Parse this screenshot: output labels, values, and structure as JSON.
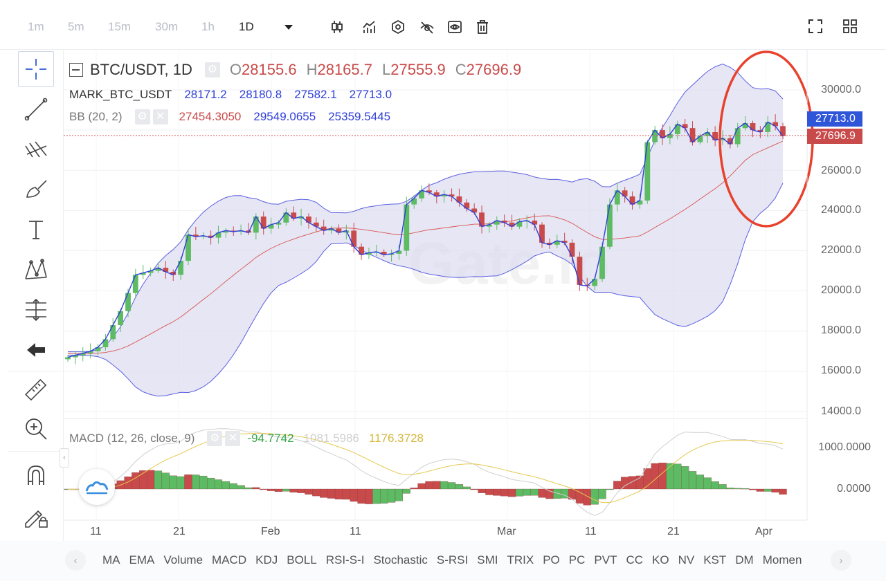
{
  "toolbar": {
    "intervals": [
      "1m",
      "5m",
      "15m",
      "30m",
      "1h",
      "1D"
    ],
    "active_interval": "1D"
  },
  "legend": {
    "symbol": "BTC/USDT, 1D",
    "ohlc": {
      "o_label": "O",
      "o": "28155.6",
      "h_label": "H",
      "h": "28165.7",
      "l_label": "L",
      "l": "27555.9",
      "c_label": "C",
      "c": "27696.9"
    },
    "mark": {
      "label": "MARK_BTC_USDT",
      "v1": "28171.2",
      "v2": "28180.8",
      "v3": "27582.1",
      "v4": "27713.0"
    },
    "bb": {
      "label": "BB (20, 2)",
      "mid": "27454.3050",
      "upper": "29549.0655",
      "lower": "25359.5445"
    },
    "macd": {
      "label": "MACD (12, 26, close, 9)",
      "hist": "-94.7742",
      "macd": "1081.5986",
      "signal": "1176.3728"
    }
  },
  "price_axis": [
    "30000.0",
    "28000.0",
    "26000.0",
    "24000.0",
    "22000.0",
    "20000.0",
    "18000.0",
    "16000.0",
    "14000.0"
  ],
  "macd_axis": [
    "1000.0000",
    "0.0000"
  ],
  "price_tags": {
    "mark": "27713.0",
    "last": "27696.9"
  },
  "date_axis": [
    "11",
    "21",
    "Feb",
    "11",
    "Mar",
    "11",
    "21",
    "Apr"
  ],
  "indicators": [
    "MA",
    "EMA",
    "Volume",
    "MACD",
    "KDJ",
    "BOLL",
    "RSI-S-I",
    "Stochastic",
    "S-RSI",
    "SMI",
    "TRIX",
    "PO",
    "PC",
    "PVT",
    "CC",
    "KO",
    "NV",
    "KST",
    "DM",
    "Momen"
  ],
  "watermark": "Gate.io",
  "colors": {
    "up": "#5dbb63",
    "down": "#c94a4a",
    "bb_band": "#5b5fe0",
    "bb_mid": "#d9534f",
    "mark_line": "#2f40d8",
    "highlight_circle": "#e8412c",
    "macd_signal": "#e6c84f"
  },
  "chart_data": {
    "type": "candlestick",
    "x_range": [
      "Jan 1",
      "Apr 4"
    ],
    "ylim": [
      14000,
      31000
    ],
    "closes": [
      16700,
      16800,
      16900,
      17000,
      17200,
      17600,
      18300,
      19000,
      19900,
      20800,
      20900,
      21000,
      21150,
      20950,
      20800,
      21500,
      22800,
      22700,
      22750,
      22650,
      22900,
      23000,
      22950,
      23000,
      22900,
      23700,
      23100,
      23300,
      23400,
      23900,
      23600,
      23700,
      23400,
      23200,
      23000,
      23100,
      22900,
      23000,
      22200,
      21800,
      21900,
      21950,
      21800,
      21850,
      22000,
      24300,
      24600,
      25000,
      24900,
      24700,
      24800,
      24700,
      24400,
      24100,
      23900,
      23200,
      23300,
      23500,
      23400,
      23200,
      23450,
      23500,
      23300,
      22400,
      22300,
      22500,
      22400,
      21700,
      20300,
      20250,
      20600,
      22200,
      24300,
      25000,
      24700,
      24300,
      24500,
      27400,
      28000,
      27600,
      27800,
      28300,
      28100,
      27400,
      27700,
      27900,
      27500,
      27600,
      27300,
      28100,
      28350,
      28000,
      27900,
      28400,
      28200,
      27700
    ],
    "bb_upper_end": 29549.0655,
    "bb_mid_end": 27454.305,
    "bb_lower_end": 25359.5445
  }
}
